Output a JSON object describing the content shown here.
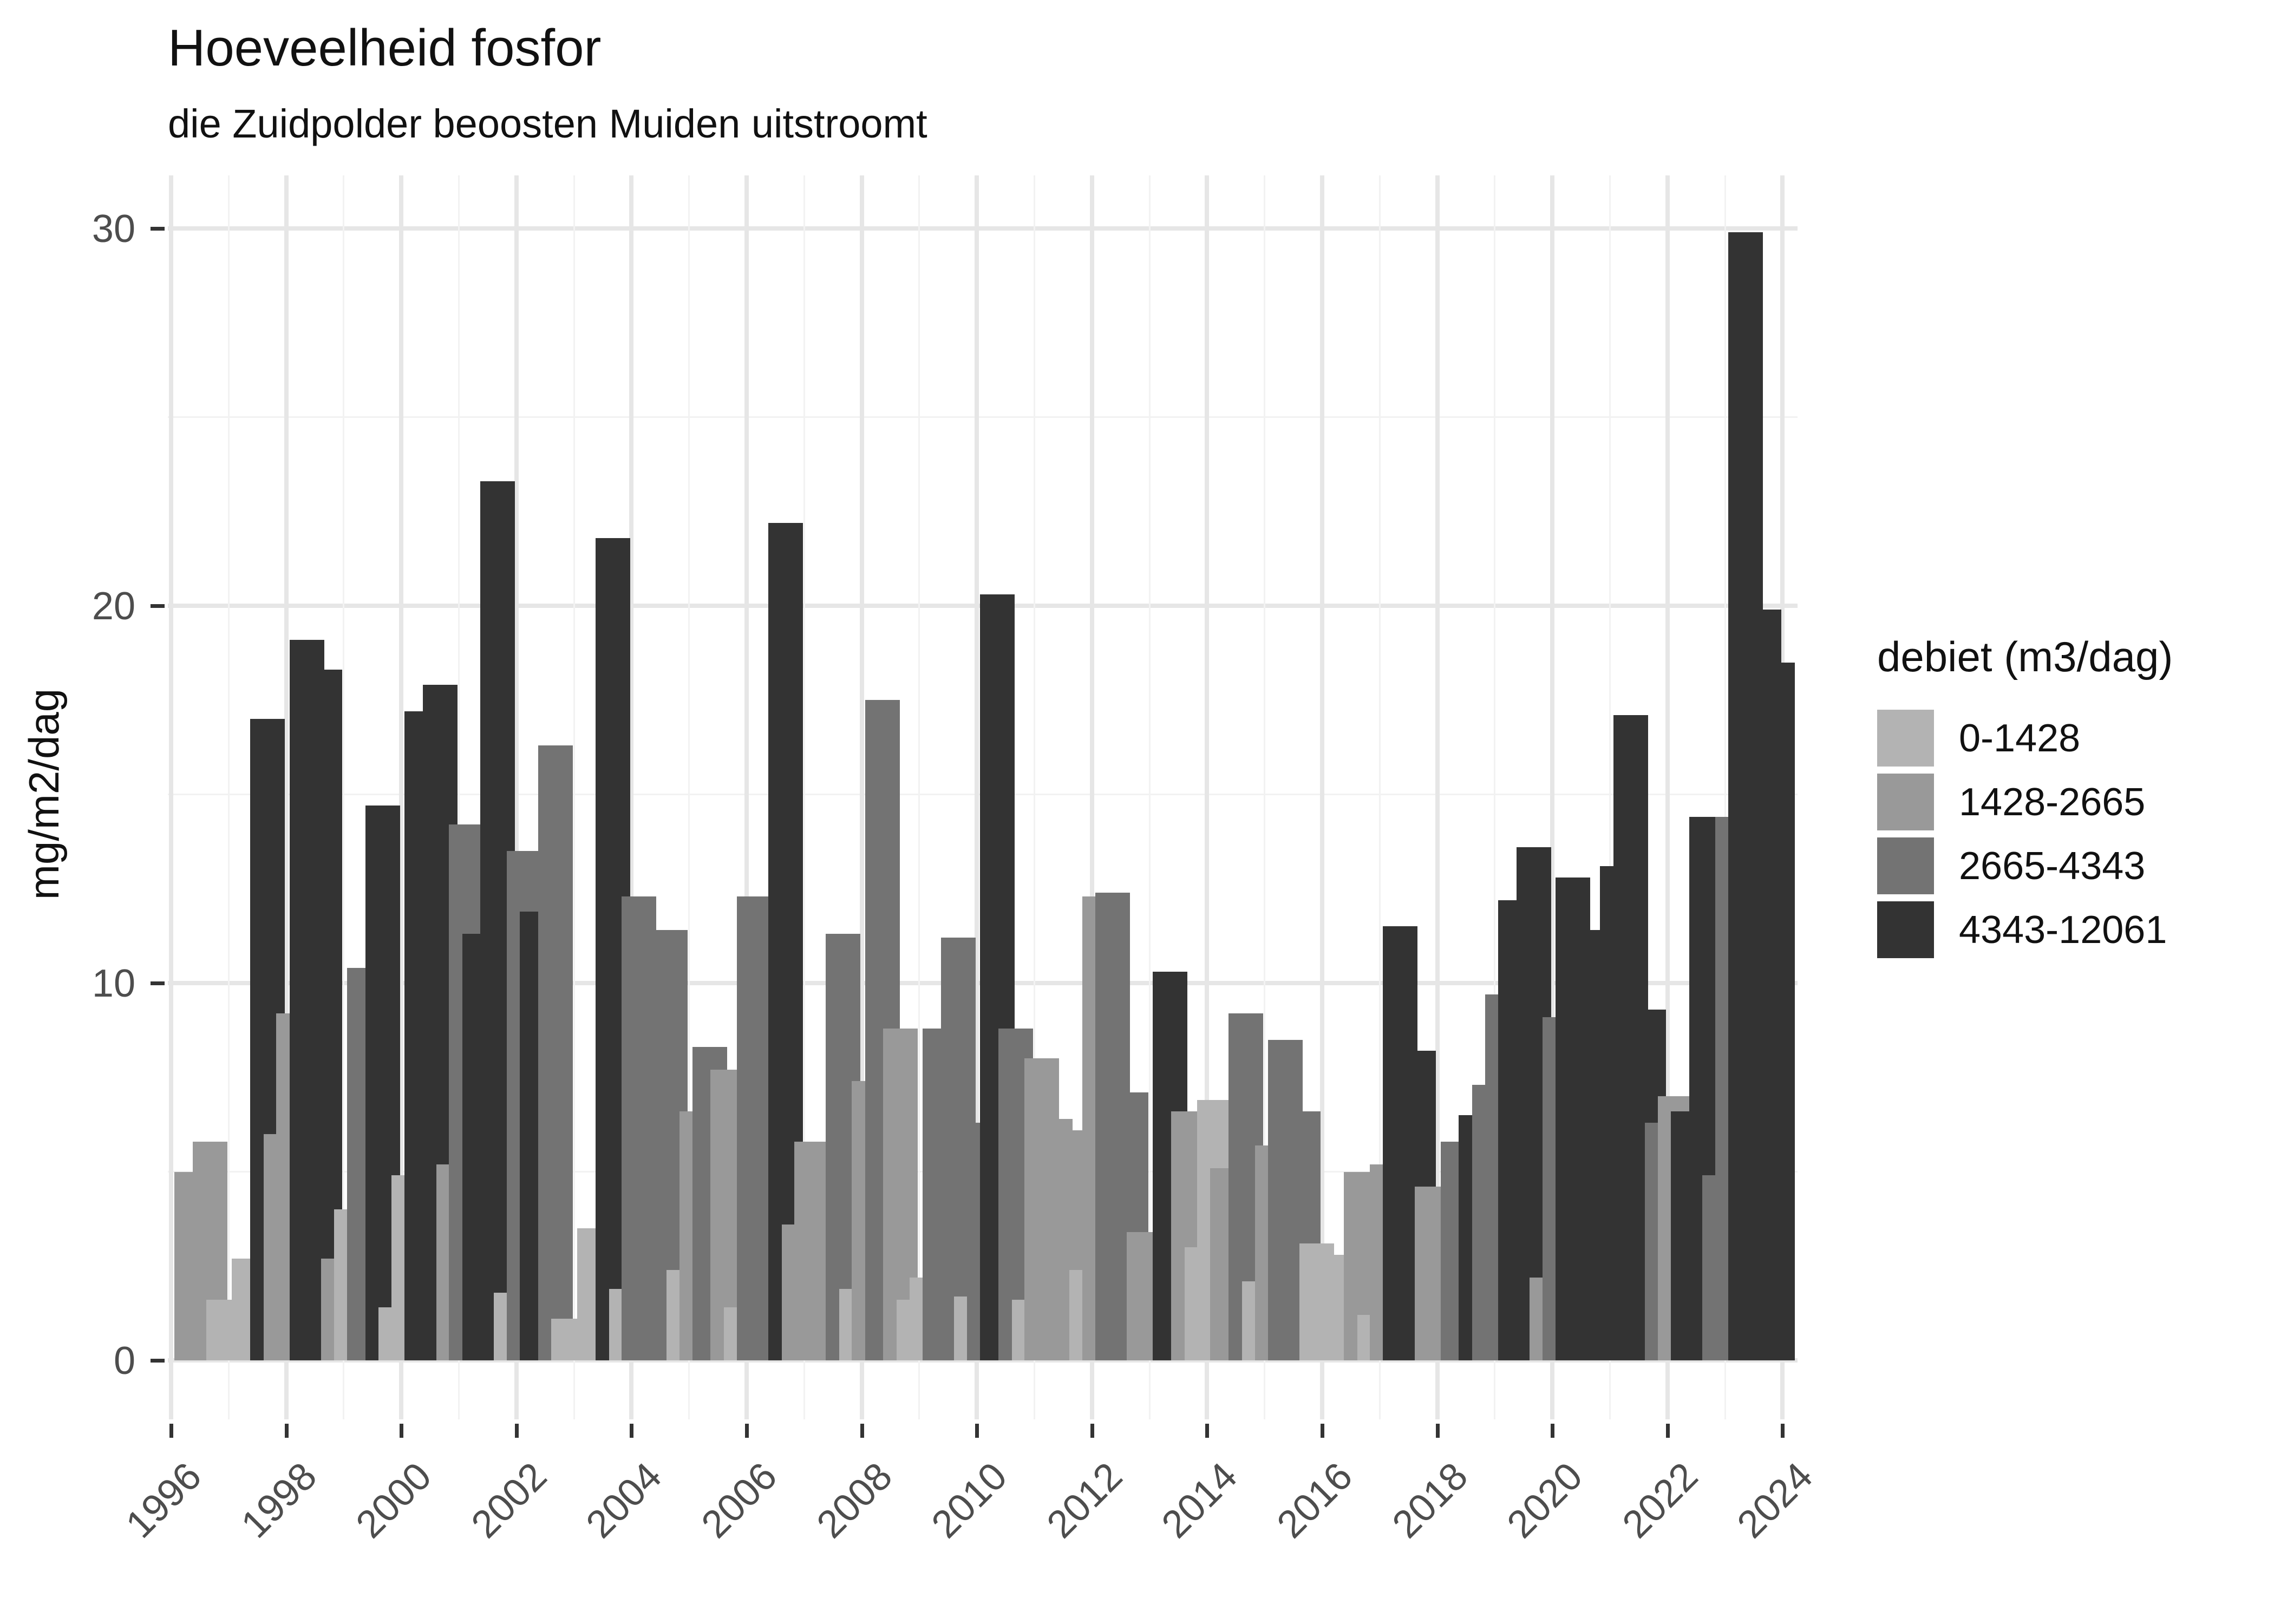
{
  "title": "Hoeveelheid fosfor",
  "subtitle": "die Zuidpolder beoosten Muiden uitstroomt",
  "y_axis": {
    "title": "mg/m2/dag",
    "ticks": [
      "0",
      "10",
      "20",
      "30"
    ]
  },
  "x_axis": {
    "ticks": [
      "1996",
      "1998",
      "2000",
      "2002",
      "2004",
      "2006",
      "2008",
      "2010",
      "2012",
      "2014",
      "2016",
      "2018",
      "2020",
      "2022",
      "2024"
    ]
  },
  "legend": {
    "title": "debiet (m3/dag)",
    "items": [
      {
        "label": "0-1428",
        "color": "#b3b3b3"
      },
      {
        "label": "1428-2665",
        "color": "#999999"
      },
      {
        "label": "2665-4343",
        "color": "#737373"
      },
      {
        "label": "4343-12061",
        "color": "#333333"
      }
    ]
  },
  "chart_data": {
    "type": "bar",
    "title": "Hoeveelheid fosfor",
    "subtitle": "die Zuidpolder beoosten Muiden uitstroomt",
    "ylabel": "mg/m2/dag",
    "ylim": [
      0,
      30
    ],
    "y_major_gridlines": [
      0,
      10,
      20,
      30
    ],
    "y_minor_gridlines": [
      5,
      15,
      25
    ],
    "x_tick_years": [
      1996,
      1998,
      2000,
      2002,
      2004,
      2006,
      2008,
      2010,
      2012,
      2014,
      2016,
      2018,
      2020,
      2022,
      2024
    ],
    "legend_position": "right",
    "grid": "on",
    "series_legend_title": "debiet (m3/dag)",
    "flow_classes": [
      "0-1428",
      "1428-2665",
      "2665-4343",
      "4343-12061"
    ],
    "flow_colors": [
      "#b3b3b3",
      "#999999",
      "#737373",
      "#333333"
    ],
    "bars": [
      {
        "p": "1996 Q2",
        "v": 5.0,
        "c": 2
      },
      {
        "p": "1996 Q3",
        "v": 5.8,
        "c": 2
      },
      {
        "p": "1996 Q4",
        "v": 1.6,
        "c": 1
      },
      {
        "p": "1997 Q1",
        "v": 1.4,
        "c": 1
      },
      {
        "p": "1997 Q2",
        "v": 2.7,
        "c": 1
      },
      {
        "p": "1997 Q3",
        "v": 17.0,
        "c": 4
      },
      {
        "p": "1997 Q4",
        "v": 6.0,
        "c": 2
      },
      {
        "p": "1998 Q1",
        "v": 9.2,
        "c": 2
      },
      {
        "p": "1998 Q2",
        "v": 19.1,
        "c": 4
      },
      {
        "p": "1998 Q3",
        "v": 18.3,
        "c": 4
      },
      {
        "p": "1998 Q4",
        "v": 2.7,
        "c": 2
      },
      {
        "p": "1999 Q1",
        "v": 4.0,
        "c": 1
      },
      {
        "p": "1999 Q2",
        "v": 10.4,
        "c": 3
      },
      {
        "p": "1999 Q3",
        "v": 14.7,
        "c": 4
      },
      {
        "p": "1999 Q4",
        "v": 1.4,
        "c": 1
      },
      {
        "p": "2000 Q1",
        "v": 4.9,
        "c": 1
      },
      {
        "p": "2000 Q2",
        "v": 17.2,
        "c": 4
      },
      {
        "p": "2000 Q3",
        "v": 17.9,
        "c": 4
      },
      {
        "p": "2000 Q4",
        "v": 5.2,
        "c": 2
      },
      {
        "p": "2001 Q1",
        "v": 14.2,
        "c": 3
      },
      {
        "p": "2001 Q2",
        "v": 11.3,
        "c": 4
      },
      {
        "p": "2001 Q3",
        "v": 23.3,
        "c": 4
      },
      {
        "p": "2001 Q4",
        "v": 1.8,
        "c": 1
      },
      {
        "p": "2002 Q1",
        "v": 13.5,
        "c": 3
      },
      {
        "p": "2002 Q2",
        "v": 11.9,
        "c": 4
      },
      {
        "p": "2002 Q3",
        "v": 16.3,
        "c": 3
      },
      {
        "p": "2002 Q4",
        "v": 1.1,
        "c": 1
      },
      {
        "p": "2003 Q1",
        "v": 0.8,
        "c": 1
      },
      {
        "p": "2003 Q2",
        "v": 3.5,
        "c": 1
      },
      {
        "p": "2003 Q3",
        "v": 21.8,
        "c": 4
      },
      {
        "p": "2003 Q4",
        "v": 1.9,
        "c": 1
      },
      {
        "p": "2004 Q1",
        "v": 12.3,
        "c": 3
      },
      {
        "p": "2004 Q2",
        "v": 8.3,
        "c": 3
      },
      {
        "p": "2004 Q3",
        "v": 11.4,
        "c": 3
      },
      {
        "p": "2004 Q4",
        "v": 2.4,
        "c": 1
      },
      {
        "p": "2005 Q1",
        "v": 6.6,
        "c": 2
      },
      {
        "p": "2005 Q2",
        "v": 8.3,
        "c": 3
      },
      {
        "p": "2005 Q3",
        "v": 7.7,
        "c": 2
      },
      {
        "p": "2005 Q4",
        "v": 1.4,
        "c": 1
      },
      {
        "p": "2006 Q1",
        "v": 12.3,
        "c": 3
      },
      {
        "p": "2006 Q2",
        "v": 9.5,
        "c": 3
      },
      {
        "p": "2006 Q3",
        "v": 22.2,
        "c": 4
      },
      {
        "p": "2006 Q4",
        "v": 3.6,
        "c": 2
      },
      {
        "p": "2007 Q1",
        "v": 5.8,
        "c": 2
      },
      {
        "p": "2007 Q2",
        "v": 4.5,
        "c": 2
      },
      {
        "p": "2007 Q3",
        "v": 11.3,
        "c": 3
      },
      {
        "p": "2007 Q4",
        "v": 1.9,
        "c": 1
      },
      {
        "p": "2008 Q1",
        "v": 7.4,
        "c": 2
      },
      {
        "p": "2008 Q2",
        "v": 17.5,
        "c": 3
      },
      {
        "p": "2008 Q3",
        "v": 8.8,
        "c": 2
      },
      {
        "p": "2008 Q4",
        "v": 1.6,
        "c": 1
      },
      {
        "p": "2009 Q1",
        "v": 2.2,
        "c": 1
      },
      {
        "p": "2009 Q2",
        "v": 8.8,
        "c": 3
      },
      {
        "p": "2009 Q3",
        "v": 11.2,
        "c": 3
      },
      {
        "p": "2009 Q4",
        "v": 1.7,
        "c": 1
      },
      {
        "p": "2010 Q1",
        "v": 6.3,
        "c": 3
      },
      {
        "p": "2010 Q2",
        "v": 20.3,
        "c": 4
      },
      {
        "p": "2010 Q3",
        "v": 8.8,
        "c": 3
      },
      {
        "p": "2010 Q4",
        "v": 1.6,
        "c": 1
      },
      {
        "p": "2011 Q1",
        "v": 8.0,
        "c": 2
      },
      {
        "p": "2011 Q2",
        "v": 6.4,
        "c": 2
      },
      {
        "p": "2011 Q3",
        "v": 6.1,
        "c": 2
      },
      {
        "p": "2011 Q4",
        "v": 2.4,
        "c": 1
      },
      {
        "p": "2012 Q1",
        "v": 12.3,
        "c": 2
      },
      {
        "p": "2012 Q2",
        "v": 12.4,
        "c": 3
      },
      {
        "p": "2012 Q3",
        "v": 7.1,
        "c": 3
      },
      {
        "p": "2012 Q4",
        "v": 3.4,
        "c": 2
      },
      {
        "p": "2013 Q1",
        "v": 3.2,
        "c": 2
      },
      {
        "p": "2013 Q2",
        "v": 10.3,
        "c": 4
      },
      {
        "p": "2013 Q3",
        "v": 6.6,
        "c": 2
      },
      {
        "p": "2013 Q4",
        "v": 3.0,
        "c": 1
      },
      {
        "p": "2014 Q1",
        "v": 6.9,
        "c": 1
      },
      {
        "p": "2014 Q2",
        "v": 5.1,
        "c": 2
      },
      {
        "p": "2014 Q3",
        "v": 9.2,
        "c": 3
      },
      {
        "p": "2014 Q4",
        "v": 2.1,
        "c": 1
      },
      {
        "p": "2015 Q1",
        "v": 5.7,
        "c": 2
      },
      {
        "p": "2015 Q2",
        "v": 8.5,
        "c": 3
      },
      {
        "p": "2015 Q3",
        "v": 6.6,
        "c": 3
      },
      {
        "p": "2015 Q4",
        "v": 3.1,
        "c": 1
      },
      {
        "p": "2016 Q1",
        "v": 2.8,
        "c": 1
      },
      {
        "p": "2016 Q2",
        "v": 2.2,
        "c": 1
      },
      {
        "p": "2016 Q3",
        "v": 5.0,
        "c": 2
      },
      {
        "p": "2016 Q4",
        "v": 1.2,
        "c": 1
      },
      {
        "p": "2017 Q1",
        "v": 5.2,
        "c": 2
      },
      {
        "p": "2017 Q2",
        "v": 11.5,
        "c": 4
      },
      {
        "p": "2017 Q3",
        "v": 8.2,
        "c": 4
      },
      {
        "p": "2017 Q4",
        "v": 4.6,
        "c": 2
      },
      {
        "p": "2018 Q1",
        "v": 2.1,
        "c": 2
      },
      {
        "p": "2018 Q2",
        "v": 5.8,
        "c": 3
      },
      {
        "p": "2018 Q3",
        "v": 6.5,
        "c": 4
      },
      {
        "p": "2018 Q4",
        "v": 7.3,
        "c": 3
      },
      {
        "p": "2019 Q1",
        "v": 9.7,
        "c": 3
      },
      {
        "p": "2019 Q2",
        "v": 12.2,
        "c": 4
      },
      {
        "p": "2019 Q3",
        "v": 13.6,
        "c": 4
      },
      {
        "p": "2019 Q4",
        "v": 2.2,
        "c": 2
      },
      {
        "p": "2020 Q1",
        "v": 9.1,
        "c": 3
      },
      {
        "p": "2020 Q2",
        "v": 12.8,
        "c": 4
      },
      {
        "p": "2020 Q3",
        "v": 11.4,
        "c": 4
      },
      {
        "p": "2020 Q4",
        "v": 8.2,
        "c": 4
      },
      {
        "p": "2021 Q1",
        "v": 13.1,
        "c": 4
      },
      {
        "p": "2021 Q2",
        "v": 17.1,
        "c": 4
      },
      {
        "p": "2021 Q3",
        "v": 9.3,
        "c": 4
      },
      {
        "p": "2021 Q4",
        "v": 6.3,
        "c": 3
      },
      {
        "p": "2022 Q1",
        "v": 7.0,
        "c": 2
      },
      {
        "p": "2022 Q2",
        "v": 6.6,
        "c": 4
      },
      {
        "p": "2022 Q3",
        "v": 14.4,
        "c": 4
      },
      {
        "p": "2022 Q4",
        "v": 4.9,
        "c": 3
      },
      {
        "p": "2023 Q1",
        "v": 14.4,
        "c": 3
      },
      {
        "p": "2023 Q2",
        "v": 29.9,
        "c": 4
      },
      {
        "p": "2023 Q3",
        "v": 19.9,
        "c": 4
      },
      {
        "p": "2023 Q4",
        "v": 18.5,
        "c": 4
      }
    ]
  }
}
